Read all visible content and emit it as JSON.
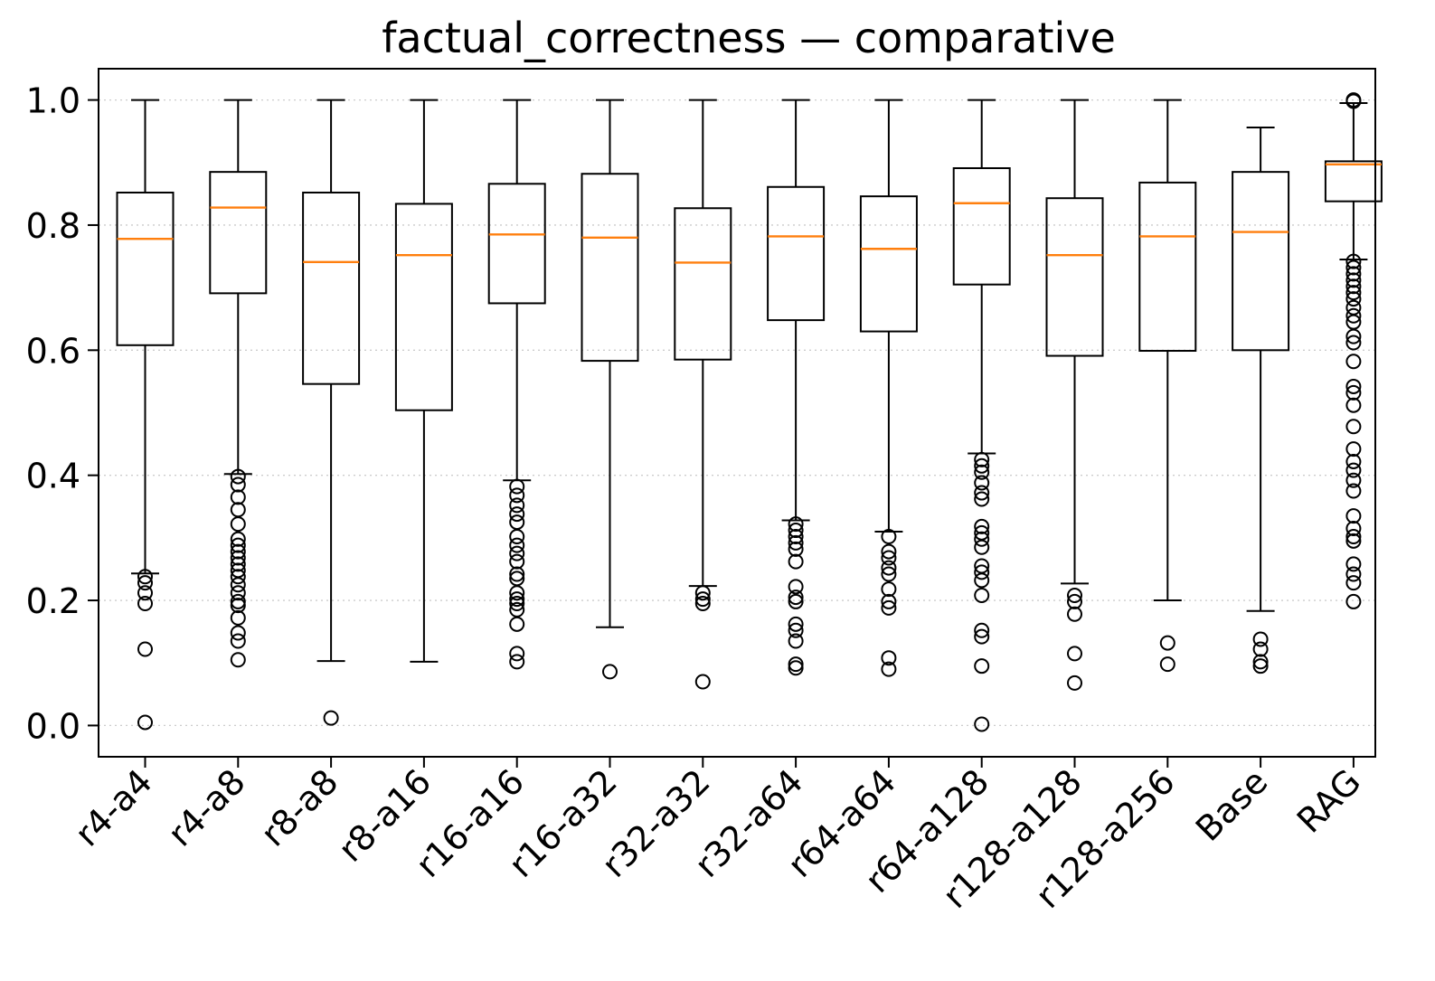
{
  "chart_data": {
    "type": "box",
    "title": "factual_correctness — comparative",
    "xlabel": "",
    "ylabel": "",
    "ylim": [
      -0.05,
      1.05
    ],
    "yticks": [
      0.0,
      0.2,
      0.4,
      0.6,
      0.8,
      1.0
    ],
    "ytick_labels": [
      "0.0",
      "0.2",
      "0.4",
      "0.6",
      "0.8",
      "1.0"
    ],
    "grid": "horizontal dotted",
    "colors": {
      "box": "#000000",
      "median": "#ff7f0e",
      "grid": "#cccccc"
    },
    "categories": [
      "r4-a4",
      "r4-a8",
      "r8-a8",
      "r8-a16",
      "r16-a16",
      "r16-a32",
      "r32-a32",
      "r32-a64",
      "r64-a64",
      "r64-a128",
      "r128-a128",
      "r128-a256",
      "Base",
      "RAG"
    ],
    "boxes": [
      {
        "label": "r4-a4",
        "whislo": 0.243,
        "q1": 0.608,
        "med": 0.778,
        "q3": 0.852,
        "whishi": 1.0,
        "fliers": [
          0.238,
          0.228,
          0.212,
          0.195,
          0.122,
          0.005
        ]
      },
      {
        "label": "r4-a8",
        "whislo": 0.402,
        "q1": 0.691,
        "med": 0.828,
        "q3": 0.885,
        "whishi": 1.0,
        "fliers": [
          0.398,
          0.385,
          0.365,
          0.345,
          0.322,
          0.298,
          0.288,
          0.278,
          0.268,
          0.258,
          0.248,
          0.238,
          0.225,
          0.212,
          0.198,
          0.192,
          0.172,
          0.148,
          0.135,
          0.105
        ]
      },
      {
        "label": "r8-a8",
        "whislo": 0.103,
        "q1": 0.546,
        "med": 0.741,
        "q3": 0.852,
        "whishi": 1.0,
        "fliers": [
          0.012
        ]
      },
      {
        "label": "r8-a16",
        "whislo": 0.102,
        "q1": 0.504,
        "med": 0.752,
        "q3": 0.834,
        "whishi": 1.0,
        "fliers": []
      },
      {
        "label": "r16-a16",
        "whislo": 0.392,
        "q1": 0.675,
        "med": 0.785,
        "q3": 0.866,
        "whishi": 1.0,
        "fliers": [
          0.382,
          0.368,
          0.352,
          0.338,
          0.325,
          0.302,
          0.288,
          0.275,
          0.262,
          0.242,
          0.235,
          0.212,
          0.202,
          0.195,
          0.185,
          0.162,
          0.115,
          0.102
        ]
      },
      {
        "label": "r16-a32",
        "whislo": 0.157,
        "q1": 0.583,
        "med": 0.78,
        "q3": 0.882,
        "whishi": 1.0,
        "fliers": [
          0.086
        ]
      },
      {
        "label": "r32-a32",
        "whislo": 0.223,
        "q1": 0.585,
        "med": 0.74,
        "q3": 0.827,
        "whishi": 1.0,
        "fliers": [
          0.212,
          0.202,
          0.195,
          0.07
        ]
      },
      {
        "label": "r32-a64",
        "whislo": 0.328,
        "q1": 0.648,
        "med": 0.782,
        "q3": 0.861,
        "whishi": 1.0,
        "fliers": [
          0.322,
          0.312,
          0.302,
          0.292,
          0.282,
          0.262,
          0.222,
          0.205,
          0.198,
          0.162,
          0.152,
          0.135,
          0.098,
          0.092
        ]
      },
      {
        "label": "r64-a64",
        "whislo": 0.31,
        "q1": 0.63,
        "med": 0.762,
        "q3": 0.846,
        "whishi": 1.0,
        "fliers": [
          0.302,
          0.278,
          0.268,
          0.252,
          0.242,
          0.218,
          0.198,
          0.188,
          0.108,
          0.09
        ]
      },
      {
        "label": "r64-a128",
        "whislo": 0.435,
        "q1": 0.705,
        "med": 0.835,
        "q3": 0.891,
        "whishi": 1.0,
        "fliers": [
          0.425,
          0.415,
          0.405,
          0.388,
          0.372,
          0.362,
          0.318,
          0.308,
          0.298,
          0.285,
          0.255,
          0.245,
          0.232,
          0.208,
          0.152,
          0.142,
          0.095,
          0.002
        ]
      },
      {
        "label": "r128-a128",
        "whislo": 0.227,
        "q1": 0.591,
        "med": 0.752,
        "q3": 0.843,
        "whishi": 1.0,
        "fliers": [
          0.208,
          0.198,
          0.178,
          0.115,
          0.068
        ]
      },
      {
        "label": "r128-a256",
        "whislo": 0.2,
        "q1": 0.599,
        "med": 0.782,
        "q3": 0.868,
        "whishi": 1.0,
        "fliers": [
          0.132,
          0.098
        ]
      },
      {
        "label": "Base",
        "whislo": 0.183,
        "q1": 0.6,
        "med": 0.789,
        "q3": 0.885,
        "whishi": 0.956,
        "fliers": [
          0.138,
          0.122,
          0.102,
          0.095
        ]
      },
      {
        "label": "RAG",
        "whislo": 0.745,
        "q1": 0.838,
        "med": 0.897,
        "q3": 0.902,
        "whishi": 0.995,
        "fliers": [
          1.0,
          0.998,
          0.742,
          0.732,
          0.722,
          0.712,
          0.702,
          0.692,
          0.682,
          0.668,
          0.655,
          0.645,
          0.622,
          0.612,
          0.582,
          0.542,
          0.532,
          0.512,
          0.478,
          0.442,
          0.422,
          0.408,
          0.392,
          0.375,
          0.335,
          0.315,
          0.302,
          0.295,
          0.258,
          0.242,
          0.228,
          0.198
        ]
      }
    ]
  }
}
